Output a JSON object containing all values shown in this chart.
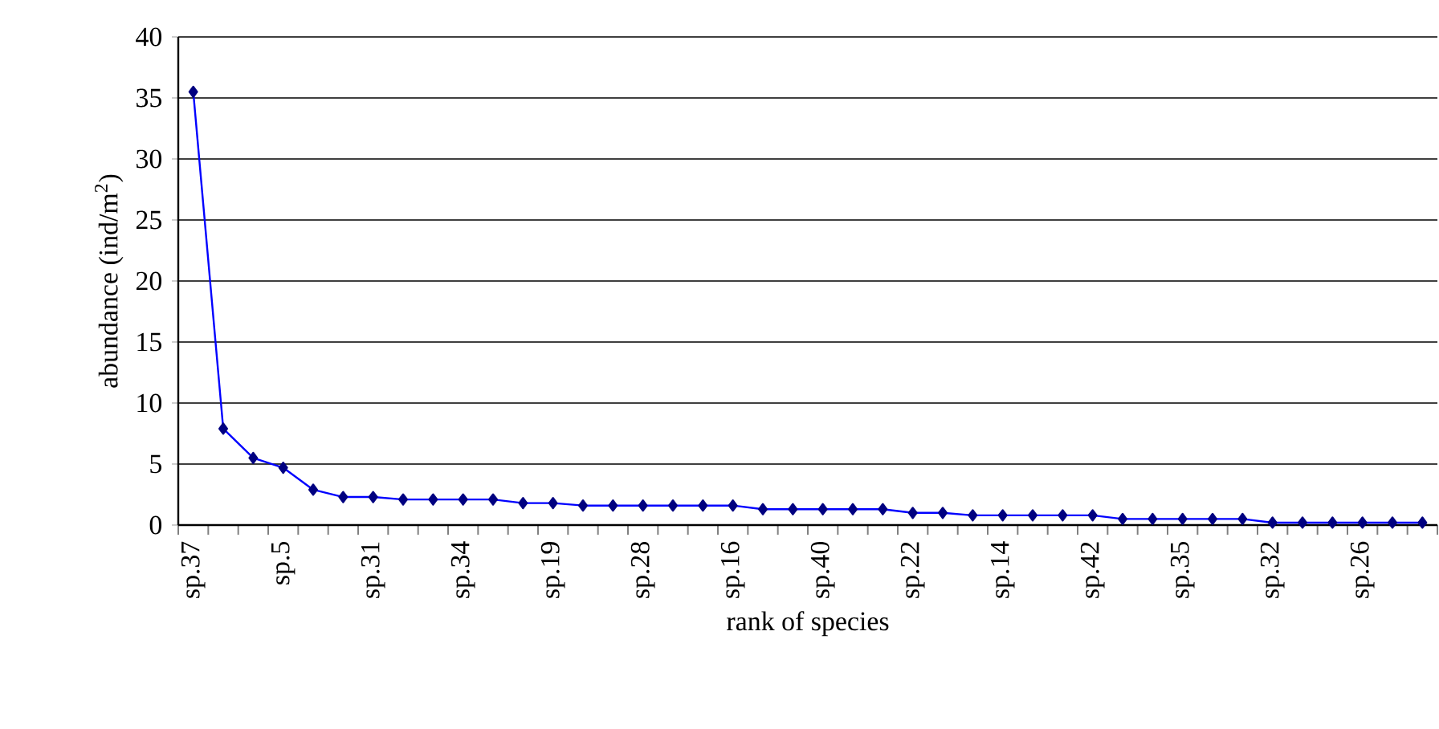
{
  "chart_data": {
    "type": "line",
    "xlabel": "rank of species",
    "ylabel": "abundance (ind/m$^{2}$)",
    "categories": [
      "sp.37",
      null,
      null,
      "sp.5",
      null,
      null,
      "sp.31",
      null,
      null,
      "sp.34",
      null,
      null,
      "sp.19",
      null,
      null,
      "sp.28",
      null,
      null,
      "sp.16",
      null,
      null,
      "sp.40",
      null,
      null,
      "sp.22",
      null,
      null,
      "sp.14",
      null,
      null,
      "sp.42",
      null,
      null,
      "sp.35",
      null,
      null,
      "sp.32",
      null,
      null,
      "sp.26",
      null,
      null
    ],
    "series": [
      {
        "color": "#0000ff",
        "values": [
          35.5,
          7.9,
          5.5,
          4.7,
          2.9,
          2.3,
          2.3,
          2.1,
          2.1,
          2.1,
          2.1,
          1.8,
          1.8,
          1.6,
          1.6,
          1.6,
          1.6,
          1.6,
          1.6,
          1.3,
          1.3,
          1.3,
          1.3,
          1.3,
          1.0,
          1.0,
          0.8,
          0.8,
          0.8,
          0.8,
          0.8,
          0.5,
          0.5,
          0.5,
          0.5,
          0.5,
          0.2,
          0.2,
          0.2,
          0.2,
          0.2,
          0.2
        ]
      }
    ],
    "ylim": [
      0,
      40
    ],
    "yticks": [
      0,
      5,
      10,
      15,
      20,
      25,
      30,
      35,
      40
    ],
    "grid": "y",
    "marker": "diamond",
    "line_style": "solid"
  }
}
